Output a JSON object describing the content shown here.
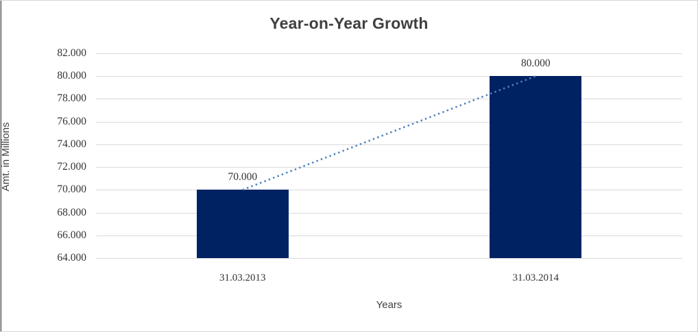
{
  "chart_data": {
    "type": "bar",
    "title": "Year-on-Year Growth",
    "xlabel": "Years",
    "ylabel": "Amt. in Millions",
    "categories": [
      "31.03.2013",
      "31.03.2014"
    ],
    "values": [
      70,
      80
    ],
    "value_labels": [
      "70.000",
      "80.000"
    ],
    "ylim": [
      64,
      82
    ],
    "ytick_step": 2,
    "yticks": [
      {
        "v": 82,
        "label": "82.000"
      },
      {
        "v": 80,
        "label": "80.000"
      },
      {
        "v": 78,
        "label": "78.000"
      },
      {
        "v": 76,
        "label": "76.000"
      },
      {
        "v": 74,
        "label": "74.000"
      },
      {
        "v": 72,
        "label": "72.000"
      },
      {
        "v": 70,
        "label": "70.000"
      },
      {
        "v": 68,
        "label": "68.000"
      },
      {
        "v": 66,
        "label": "66.000"
      },
      {
        "v": 64,
        "label": "64.000"
      }
    ],
    "grid": "horizontal",
    "legend": "none",
    "bar_color": "#002262",
    "trendline": {
      "style": "dotted",
      "color": "#4f81bd"
    }
  }
}
